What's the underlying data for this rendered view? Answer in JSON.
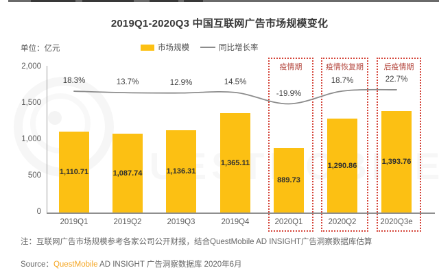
{
  "header": {
    "title": "2019Q1-2020Q3 中国互联网广告市场规模变化",
    "unit_label": "单位：亿元"
  },
  "legend": {
    "bar_label": "市场规模",
    "line_label": "同比增长率"
  },
  "chart_data": {
    "type": "bar",
    "title": "2019Q1-2020Q3 中国互联网广告市场规模变化",
    "unit": "亿元",
    "categories": [
      "2019Q1",
      "2019Q2",
      "2019Q3",
      "2019Q4",
      "2020Q1",
      "2020Q2",
      "2020Q3e"
    ],
    "series": [
      {
        "name": "市场规模",
        "type": "bar",
        "values": [
          1110.71,
          1087.74,
          1136.31,
          1365.11,
          889.73,
          1290.86,
          1393.76
        ],
        "labels": [
          "1,110.71",
          "1,087.74",
          "1,136.31",
          "1,365.11",
          "889.73",
          "1,290.86",
          "1,393.76"
        ]
      },
      {
        "name": "同比增长率",
        "type": "line",
        "values": [
          18.3,
          13.7,
          12.9,
          14.5,
          -19.9,
          18.7,
          22.7
        ],
        "labels": [
          "18.3%",
          "13.7%",
          "12.9%",
          "14.5%",
          "-19.9%",
          "18.7%",
          "22.7%"
        ]
      }
    ],
    "y_axis": {
      "ticks": [
        "2,000",
        "1,500",
        "1,000",
        "500",
        "0"
      ],
      "range": [
        0,
        2000
      ],
      "grid": false
    },
    "legend_position": "top-center",
    "annotations": [
      {
        "label": "疫情期",
        "category": "2020Q1"
      },
      {
        "label": "疫情恢复期",
        "category": "2020Q2"
      },
      {
        "label": "后疫情期",
        "category": "2020Q3e"
      }
    ],
    "colors": {
      "bar": "#FCC013",
      "line": "#8C8C8C",
      "phase_box": "#D44338",
      "brand": "#F5A623"
    }
  },
  "footer": {
    "note": "注：互联网广告市场规模参考各家公司公开财报，结合QuestMobile AD INSIGHT广告洞察数据库估算",
    "source_prefix": "Source：",
    "source_brand": "QuestMobile",
    "source_rest": " AD INSIGHT 广告洞察数据库 2020年6月"
  },
  "watermark": {
    "text": "QUESTMOBILE"
  }
}
